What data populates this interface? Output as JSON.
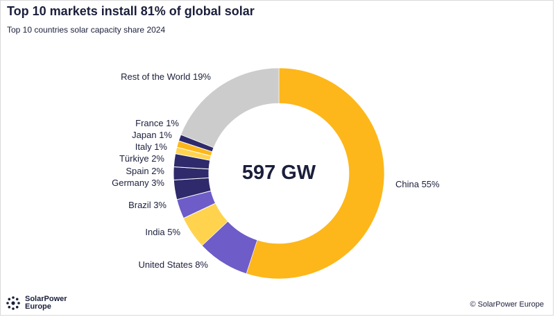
{
  "header": {
    "title": "Top 10 markets install 81% of global solar",
    "subtitle": "Top 10 countries solar capacity share 2024"
  },
  "chart_data": {
    "type": "pie",
    "style": "donut",
    "center_label": "597 GW",
    "unit": "%",
    "slices": [
      {
        "name": "China",
        "label": "China 55%",
        "value": 55,
        "color": "#FDB71A"
      },
      {
        "name": "United States",
        "label": "United States 8%",
        "value": 8,
        "color": "#6E5CC8"
      },
      {
        "name": "India",
        "label": "India 5%",
        "value": 5,
        "color": "#FFD34E"
      },
      {
        "name": "Brazil",
        "label": "Brazil 3%",
        "value": 3,
        "color": "#6E5CC8"
      },
      {
        "name": "Germany",
        "label": "Germany 3%",
        "value": 3,
        "color": "#2E2A6B"
      },
      {
        "name": "Spain",
        "label": "Spain 2%",
        "value": 2,
        "color": "#2E2A6B"
      },
      {
        "name": "Türkiye",
        "label": "Türkiye 2%",
        "value": 2,
        "color": "#2E2A6B"
      },
      {
        "name": "Italy",
        "label": "Italy 1%",
        "value": 1,
        "color": "#FFD34E"
      },
      {
        "name": "Japan",
        "label": "Japan 1%",
        "value": 1,
        "color": "#FDB71A"
      },
      {
        "name": "France",
        "label": "France 1%",
        "value": 1,
        "color": "#2E2A6B"
      },
      {
        "name": "Rest of the World",
        "label": "Rest of the World 19%",
        "value": 19,
        "color": "#CCCCCC"
      }
    ]
  },
  "footer": {
    "brand_line1": "SolarPower",
    "brand_line2": "Europe",
    "copyright": "© SolarPower Europe"
  }
}
